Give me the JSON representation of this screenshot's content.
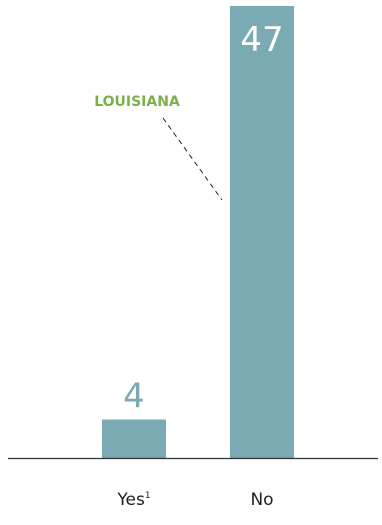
{
  "chart_data": {
    "type": "bar",
    "categories": [
      "Yes",
      "No"
    ],
    "category_superscripts": [
      "1",
      ""
    ],
    "values": [
      4,
      47
    ],
    "data_labels": [
      "4",
      "47"
    ],
    "ylim": [
      0,
      47
    ],
    "grid": false,
    "legend": "none",
    "annotation": {
      "text": "LOUISIANA",
      "points_to": "No"
    },
    "colors": {
      "bar": "#7aaab2",
      "inside_label": "#ffffff",
      "outside_label": "#7aaab2",
      "annotation": "#7ab04a",
      "axis": "#333333",
      "tick_label": "#222222",
      "leader_line": "#222222"
    }
  }
}
